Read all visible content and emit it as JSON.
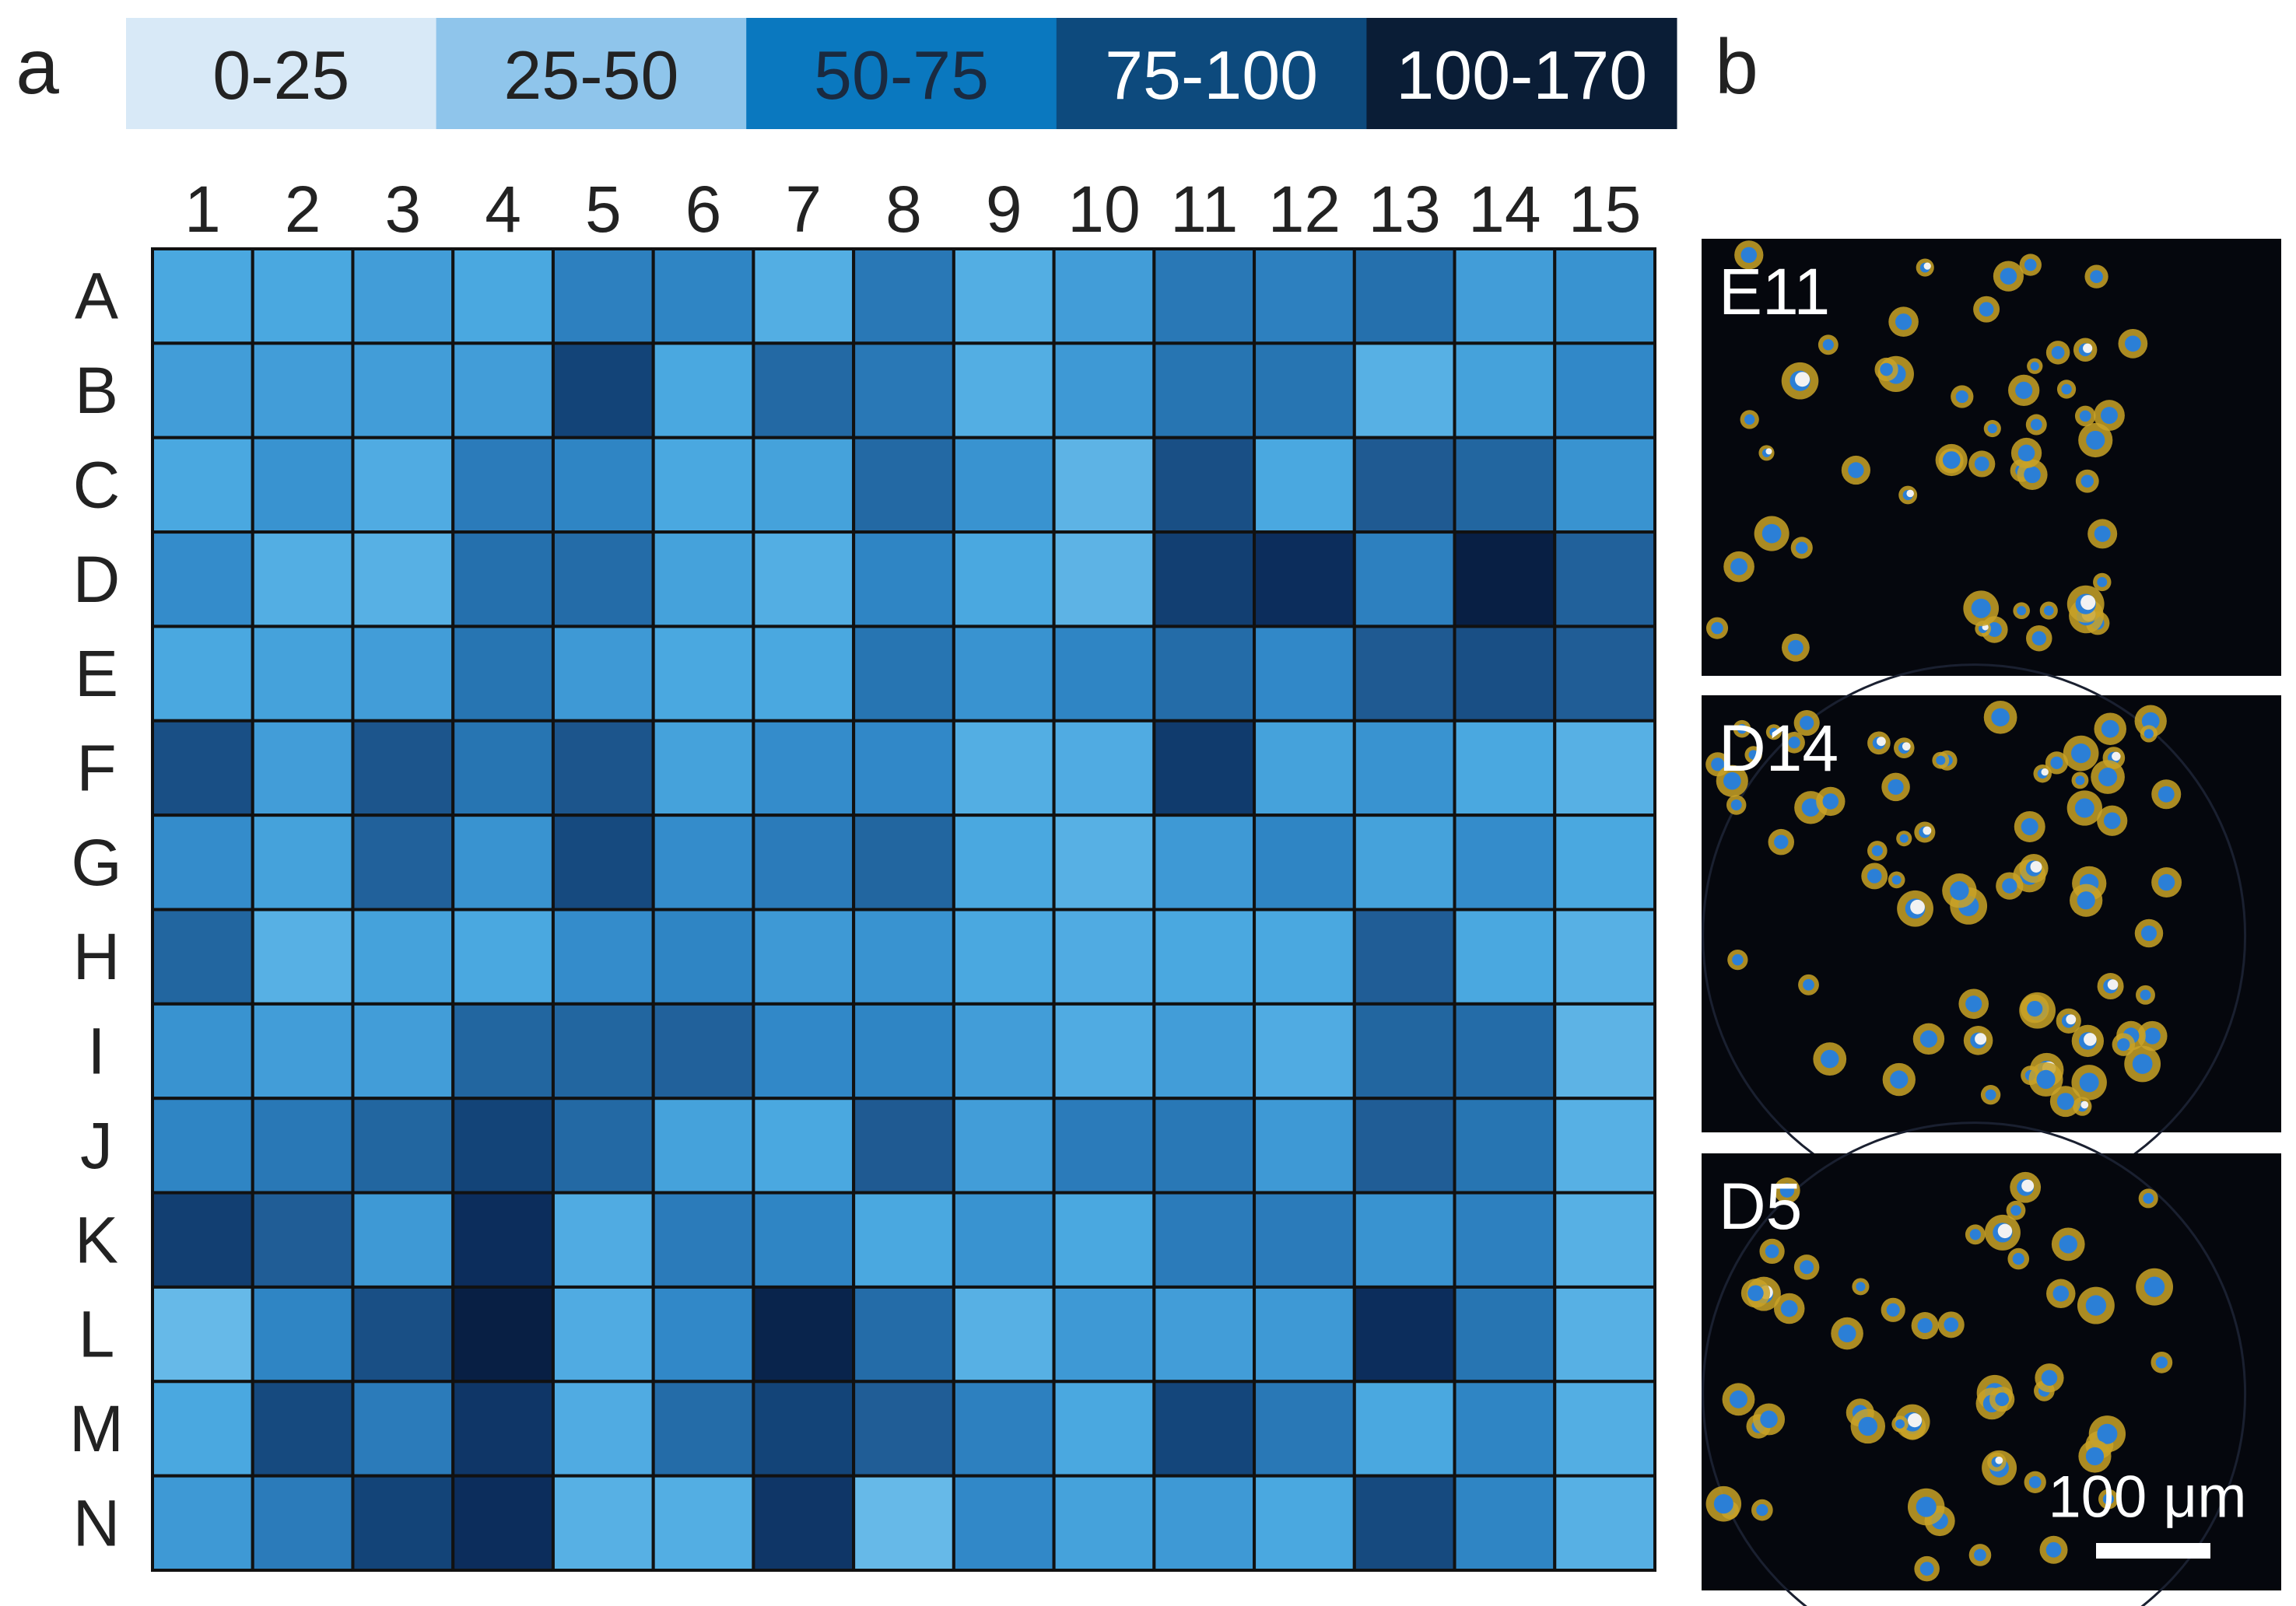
{
  "chart_data": {
    "type": "heatmap",
    "panel_labels": [
      "a",
      "b"
    ],
    "columns": [
      "1",
      "2",
      "3",
      "4",
      "5",
      "6",
      "7",
      "8",
      "9",
      "10",
      "11",
      "12",
      "13",
      "14",
      "15"
    ],
    "rows": [
      "A",
      "B",
      "C",
      "D",
      "E",
      "F",
      "G",
      "H",
      "I",
      "J",
      "K",
      "L",
      "M",
      "N"
    ],
    "legend": [
      {
        "label": "0-25",
        "color": "#d8e9f7",
        "text_color": "#222222"
      },
      {
        "label": "25-50",
        "color": "#8fc5eb",
        "text_color": "#222222"
      },
      {
        "label": "50-75",
        "color": "#0a78bf",
        "text_color": "#1a2a40"
      },
      {
        "label": "75-100",
        "color": "#0d4a7d",
        "text_color": "#ffffff"
      },
      {
        "label": "100-170",
        "color": "#0a1d36",
        "text_color": "#ffffff"
      }
    ],
    "colorscale": [
      {
        "value": 30,
        "color": "#66b9e8"
      },
      {
        "value": 45,
        "color": "#4aa8e0"
      },
      {
        "value": 60,
        "color": "#3188c8"
      },
      {
        "value": 75,
        "color": "#2570ad"
      },
      {
        "value": 90,
        "color": "#1f5a92"
      },
      {
        "value": 110,
        "color": "#134478"
      },
      {
        "value": 135,
        "color": "#0c2d5c"
      },
      {
        "value": 150,
        "color": "#081f44"
      }
    ],
    "values": [
      [
        45,
        45,
        50,
        45,
        65,
        62,
        40,
        70,
        40,
        50,
        70,
        65,
        75,
        50,
        55
      ],
      [
        50,
        50,
        50,
        50,
        110,
        45,
        80,
        70,
        40,
        52,
        72,
        72,
        38,
        48,
        60
      ],
      [
        45,
        55,
        42,
        68,
        62,
        45,
        48,
        80,
        55,
        35,
        100,
        45,
        90,
        82,
        55
      ],
      [
        58,
        40,
        38,
        75,
        78,
        48,
        40,
        62,
        45,
        35,
        115,
        135,
        65,
        150,
        85
      ],
      [
        45,
        48,
        50,
        72,
        52,
        45,
        45,
        72,
        55,
        62,
        78,
        60,
        90,
        100,
        88
      ],
      [
        100,
        50,
        95,
        72,
        95,
        48,
        58,
        60,
        40,
        42,
        120,
        48,
        55,
        45,
        38
      ],
      [
        58,
        48,
        85,
        55,
        105,
        58,
        68,
        82,
        45,
        38,
        52,
        62,
        48,
        58,
        45
      ],
      [
        82,
        38,
        48,
        45,
        58,
        62,
        52,
        55,
        45,
        42,
        45,
        45,
        88,
        45,
        38
      ],
      [
        55,
        50,
        50,
        82,
        82,
        85,
        60,
        62,
        50,
        42,
        50,
        42,
        82,
        78,
        35
      ],
      [
        62,
        70,
        82,
        110,
        80,
        48,
        45,
        90,
        50,
        68,
        70,
        52,
        88,
        72,
        38
      ],
      [
        115,
        88,
        52,
        135,
        42,
        68,
        62,
        45,
        55,
        45,
        68,
        68,
        55,
        65,
        38
      ],
      [
        30,
        62,
        100,
        150,
        42,
        60,
        145,
        78,
        38,
        52,
        50,
        52,
        135,
        72,
        38
      ],
      [
        45,
        105,
        68,
        125,
        42,
        78,
        110,
        88,
        65,
        45,
        108,
        70,
        45,
        62,
        40
      ],
      [
        52,
        68,
        110,
        135,
        38,
        40,
        125,
        30,
        60,
        48,
        52,
        45,
        105,
        62,
        38
      ]
    ],
    "images": [
      {
        "label": "E11"
      },
      {
        "label": "D14"
      },
      {
        "label": "D5"
      }
    ],
    "scale_bar": "100 μm"
  }
}
